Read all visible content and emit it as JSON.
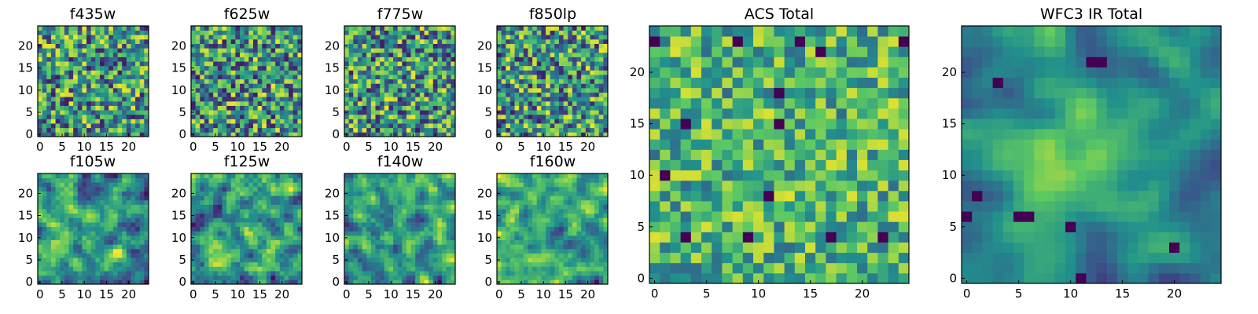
{
  "figure": {
    "colormap": "viridis",
    "colormap_stops": [
      "#440154",
      "#3b528b",
      "#21918c",
      "#5ec962",
      "#fde725"
    ]
  },
  "chart_data": [
    {
      "type": "heatmap",
      "title": "f435w",
      "grid": [
        25,
        25
      ],
      "xlim": [
        -0.5,
        24.5
      ],
      "ylim": [
        -0.5,
        24.5
      ],
      "xticks": [
        "0",
        "5",
        "10",
        "15",
        "20"
      ],
      "yticks": [
        "0",
        "5",
        "10",
        "15",
        "20"
      ],
      "seed": 11,
      "smooth": 0,
      "vmin": 0.08,
      "vmax": 0.98
    },
    {
      "type": "heatmap",
      "title": "f625w",
      "grid": [
        25,
        25
      ],
      "xlim": [
        -0.5,
        24.5
      ],
      "ylim": [
        -0.5,
        24.5
      ],
      "xticks": [
        "0",
        "5",
        "10",
        "15",
        "20"
      ],
      "yticks": [
        "0",
        "5",
        "10",
        "15",
        "20"
      ],
      "seed": 23,
      "smooth": 0,
      "vmin": 0.08,
      "vmax": 0.98
    },
    {
      "type": "heatmap",
      "title": "f775w",
      "grid": [
        25,
        25
      ],
      "xlim": [
        -0.5,
        24.5
      ],
      "ylim": [
        -0.5,
        24.5
      ],
      "xticks": [
        "0",
        "5",
        "10",
        "15",
        "20"
      ],
      "yticks": [
        "0",
        "5",
        "10",
        "15",
        "20"
      ],
      "seed": 37,
      "smooth": 0,
      "vmin": 0.08,
      "vmax": 0.98
    },
    {
      "type": "heatmap",
      "title": "f850lp",
      "grid": [
        25,
        25
      ],
      "xlim": [
        -0.5,
        24.5
      ],
      "ylim": [
        -0.5,
        24.5
      ],
      "xticks": [
        "0",
        "5",
        "10",
        "15",
        "20"
      ],
      "yticks": [
        "0",
        "5",
        "10",
        "15",
        "20"
      ],
      "seed": 41,
      "smooth": 0,
      "vmin": 0.08,
      "vmax": 0.98
    },
    {
      "type": "heatmap",
      "title": "f105w",
      "grid": [
        25,
        25
      ],
      "xlim": [
        -0.5,
        24.5
      ],
      "ylim": [
        -0.5,
        24.5
      ],
      "xticks": [
        "0",
        "5",
        "10",
        "15",
        "20"
      ],
      "yticks": [
        "0",
        "5",
        "10",
        "15",
        "20"
      ],
      "seed": 53,
      "smooth": 1,
      "vmin": 0.05,
      "vmax": 1.0
    },
    {
      "type": "heatmap",
      "title": "f125w",
      "grid": [
        25,
        25
      ],
      "xlim": [
        -0.5,
        24.5
      ],
      "ylim": [
        -0.5,
        24.5
      ],
      "xticks": [
        "0",
        "5",
        "10",
        "15",
        "20"
      ],
      "yticks": [
        "0",
        "5",
        "10",
        "15",
        "20"
      ],
      "seed": 67,
      "smooth": 1,
      "vmin": 0.05,
      "vmax": 1.0
    },
    {
      "type": "heatmap",
      "title": "f140w",
      "grid": [
        25,
        25
      ],
      "xlim": [
        -0.5,
        24.5
      ],
      "ylim": [
        -0.5,
        24.5
      ],
      "xticks": [
        "0",
        "5",
        "10",
        "15",
        "20"
      ],
      "yticks": [
        "0",
        "5",
        "10",
        "15",
        "20"
      ],
      "seed": 79,
      "smooth": 1,
      "vmin": 0.05,
      "vmax": 1.0
    },
    {
      "type": "heatmap",
      "title": "f160w",
      "grid": [
        25,
        25
      ],
      "xlim": [
        -0.5,
        24.5
      ],
      "ylim": [
        -0.5,
        24.5
      ],
      "xticks": [
        "0",
        "5",
        "10",
        "15",
        "20"
      ],
      "yticks": [
        "0",
        "5",
        "10",
        "15",
        "20"
      ],
      "seed": 83,
      "smooth": 1,
      "vmin": 0.05,
      "vmax": 1.0
    },
    {
      "type": "heatmap",
      "title": "ACS Total",
      "grid": [
        25,
        25
      ],
      "xlim": [
        -0.5,
        24.5
      ],
      "ylim": [
        -0.5,
        24.5
      ],
      "xticks": [
        "0",
        "5",
        "10",
        "15",
        "20"
      ],
      "yticks": [
        "0",
        "5",
        "10",
        "15",
        "20"
      ],
      "seed": 97,
      "smooth": 0,
      "vmin": 0.35,
      "vmax": 0.95,
      "dark_cells": [
        [
          0,
          23
        ],
        [
          14,
          23
        ],
        [
          24,
          23
        ],
        [
          3,
          15
        ],
        [
          12,
          15
        ],
        [
          12,
          18
        ],
        [
          1,
          10
        ],
        [
          11,
          8
        ],
        [
          3,
          4
        ],
        [
          9,
          4
        ],
        [
          22,
          4
        ],
        [
          8,
          23
        ],
        [
          16,
          22
        ],
        [
          17,
          4
        ]
      ]
    },
    {
      "type": "heatmap",
      "title": "WFC3 IR Total",
      "grid": [
        25,
        25
      ],
      "xlim": [
        -0.5,
        24.5
      ],
      "ylim": [
        -0.5,
        24.5
      ],
      "xticks": [
        "0",
        "5",
        "10",
        "15",
        "20"
      ],
      "yticks": [
        "0",
        "5",
        "10",
        "15",
        "20"
      ],
      "seed": 101,
      "smooth": 2,
      "vmin": 0.2,
      "vmax": 1.0,
      "bright_center": [
        12,
        12
      ],
      "dark_cells": [
        [
          12,
          21
        ],
        [
          13,
          21
        ],
        [
          3,
          19
        ],
        [
          0,
          6
        ],
        [
          1,
          8
        ],
        [
          5,
          6
        ],
        [
          6,
          6
        ],
        [
          11,
          0
        ],
        [
          20,
          3
        ],
        [
          10,
          5
        ]
      ]
    }
  ]
}
